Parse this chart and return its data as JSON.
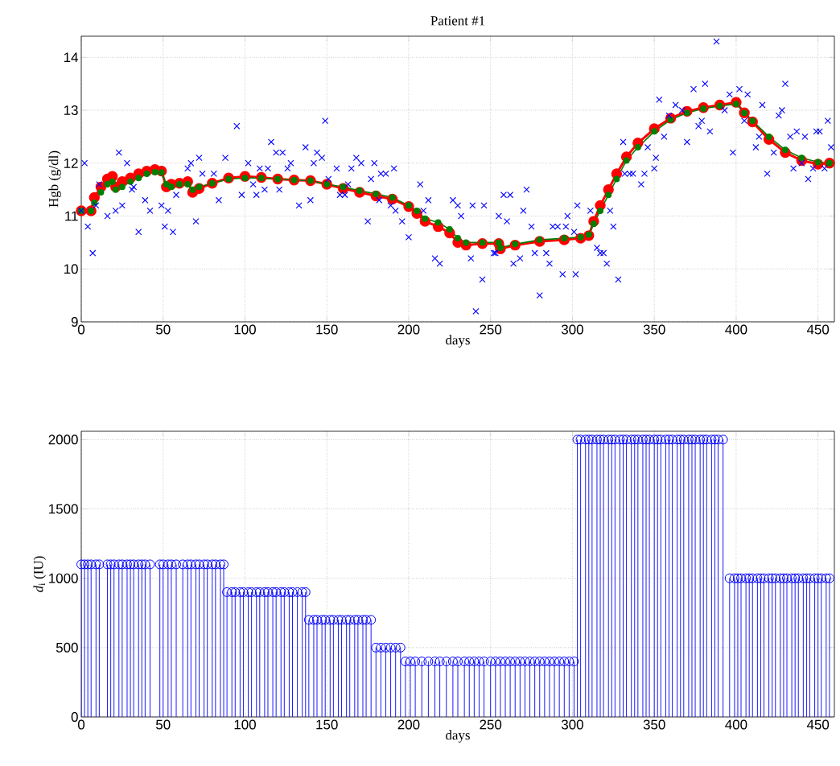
{
  "chart_data": [
    {
      "type": "scatter",
      "title": "Patient #1",
      "xlabel": "days",
      "ylabel": "Hgb (g/dl)",
      "xlim": [
        0,
        460
      ],
      "ylim": [
        9,
        14.4
      ],
      "xticks": [
        0,
        50,
        100,
        150,
        200,
        250,
        300,
        350,
        400,
        450
      ],
      "yticks": [
        9,
        10,
        11,
        12,
        13,
        14
      ],
      "grid": true,
      "series": [
        {
          "type": "scatter",
          "marker": "cross",
          "color": "#0000ff",
          "x": [
            0,
            2,
            4,
            7,
            9,
            11,
            16,
            21,
            23,
            25,
            28,
            31,
            32,
            35,
            39,
            42,
            49,
            51,
            53,
            56,
            58,
            65,
            67,
            70,
            72,
            74,
            81,
            84,
            88,
            95,
            98,
            102,
            105,
            107,
            109,
            112,
            114,
            116,
            119,
            121,
            123,
            126,
            128,
            133,
            137,
            140,
            142,
            144,
            147,
            149,
            151,
            156,
            158,
            161,
            163,
            165,
            168,
            171,
            175,
            177,
            179,
            182,
            183,
            186,
            189,
            191,
            192,
            196,
            200,
            207,
            209,
            212,
            216,
            219,
            227,
            230,
            232,
            238,
            239,
            241,
            245,
            246,
            252,
            253,
            255,
            258,
            260,
            262,
            264,
            268,
            270,
            272,
            275,
            277,
            280,
            284,
            286,
            288,
            291,
            294,
            296,
            297,
            301,
            302,
            303,
            311,
            315,
            317,
            319,
            321,
            323,
            325,
            328,
            331,
            332,
            335,
            337,
            342,
            344,
            346,
            350,
            351,
            353,
            356,
            359,
            363,
            367,
            370,
            374,
            377,
            379,
            381,
            384,
            388,
            393,
            396,
            398,
            402,
            405,
            407,
            412,
            414,
            416,
            419,
            423,
            426,
            428,
            430,
            433,
            435,
            437,
            440,
            442,
            444,
            447,
            449,
            451,
            454,
            456,
            458
          ],
          "values": [
            11.1,
            12.0,
            10.8,
            10.3,
            11.2,
            11.6,
            11.0,
            11.1,
            12.2,
            11.2,
            12.0,
            11.5,
            11.55,
            10.7,
            11.3,
            11.1,
            11.2,
            10.8,
            11.1,
            10.7,
            11.4,
            11.9,
            12.0,
            10.9,
            12.1,
            11.8,
            11.8,
            11.3,
            12.1,
            12.7,
            11.4,
            12.0,
            11.6,
            11.4,
            11.9,
            11.5,
            11.9,
            12.4,
            12.2,
            11.5,
            12.2,
            11.9,
            12.0,
            11.2,
            12.3,
            11.3,
            12.0,
            12.2,
            12.1,
            12.8,
            11.7,
            11.9,
            11.4,
            11.4,
            11.6,
            11.9,
            12.1,
            12.0,
            10.9,
            11.7,
            12.0,
            11.3,
            11.8,
            11.8,
            11.2,
            11.9,
            11.1,
            10.9,
            10.6,
            11.6,
            11.1,
            11.3,
            10.2,
            10.1,
            11.3,
            11.2,
            11.0,
            10.2,
            11.2,
            9.2,
            9.8,
            11.2,
            10.3,
            10.3,
            11.0,
            11.4,
            10.9,
            11.4,
            10.1,
            10.2,
            11.1,
            11.5,
            10.8,
            10.3,
            9.5,
            10.3,
            10.1,
            10.8,
            10.8,
            9.9,
            10.8,
            11.0,
            10.7,
            9.9,
            11.2,
            11.1,
            10.4,
            10.3,
            10.3,
            10.1,
            11.1,
            10.8,
            9.8,
            12.4,
            11.8,
            11.8,
            11.8,
            11.6,
            11.8,
            12.3,
            11.9,
            12.1,
            13.2,
            12.5,
            12.9,
            13.1,
            13.0,
            12.4,
            13.4,
            12.7,
            12.8,
            13.5,
            12.6,
            14.3,
            13.0,
            13.3,
            12.2,
            13.4,
            12.8,
            13.3,
            12.3,
            12.5,
            13.1,
            11.8,
            12.2,
            12.9,
            13.0,
            13.5,
            12.5,
            11.9,
            12.6,
            12.0,
            12.5,
            11.7,
            11.9,
            12.6,
            12.6,
            11.9,
            12.8,
            12.3
          ]
        },
        {
          "type": "line",
          "marker": "circle",
          "color": "#ff0000",
          "x": [
            0,
            6,
            8,
            12,
            16,
            19,
            21,
            25,
            30,
            35,
            40,
            45,
            49,
            52,
            55,
            60,
            65,
            68,
            72,
            80,
            90,
            100,
            110,
            120,
            130,
            140,
            150,
            160,
            170,
            180,
            190,
            200,
            205,
            210,
            218,
            225,
            230,
            235,
            245,
            255,
            256,
            265,
            280,
            295,
            305,
            310,
            313,
            317,
            322,
            327,
            333,
            340,
            350,
            360,
            370,
            380,
            390,
            400,
            405,
            410,
            420,
            430,
            440,
            450,
            457
          ],
          "values": [
            11.1,
            11.1,
            11.35,
            11.55,
            11.7,
            11.75,
            11.55,
            11.65,
            11.72,
            11.8,
            11.85,
            11.88,
            11.85,
            11.55,
            11.6,
            11.62,
            11.65,
            11.45,
            11.52,
            11.62,
            11.72,
            11.75,
            11.73,
            11.7,
            11.68,
            11.67,
            11.6,
            11.52,
            11.45,
            11.38,
            11.32,
            11.18,
            11.05,
            10.9,
            10.8,
            10.68,
            10.5,
            10.45,
            10.48,
            10.48,
            10.38,
            10.45,
            10.52,
            10.55,
            10.58,
            10.63,
            10.9,
            11.2,
            11.5,
            11.8,
            12.12,
            12.38,
            12.65,
            12.85,
            12.98,
            13.05,
            13.1,
            13.15,
            12.95,
            12.78,
            12.45,
            12.2,
            12.05,
            11.98,
            12.0
          ]
        },
        {
          "type": "line",
          "marker": "circle",
          "color": "#008000",
          "x": [
            0,
            6,
            8,
            12,
            16,
            19,
            21,
            25,
            30,
            35,
            40,
            45,
            49,
            52,
            55,
            60,
            65,
            68,
            72,
            80,
            90,
            100,
            110,
            120,
            130,
            140,
            150,
            160,
            170,
            180,
            190,
            200,
            205,
            210,
            218,
            225,
            230,
            235,
            245,
            255,
            256,
            265,
            280,
            295,
            305,
            310,
            313,
            317,
            322,
            327,
            333,
            340,
            350,
            360,
            370,
            380,
            390,
            400,
            405,
            410,
            420,
            430,
            440,
            450,
            457
          ],
          "values": [
            11.1,
            11.1,
            11.25,
            11.45,
            11.6,
            11.65,
            11.5,
            11.55,
            11.65,
            11.72,
            11.8,
            11.83,
            11.82,
            11.6,
            11.55,
            11.6,
            11.6,
            11.5,
            11.55,
            11.62,
            11.7,
            11.72,
            11.72,
            11.7,
            11.68,
            11.67,
            11.6,
            11.55,
            11.48,
            11.42,
            11.35,
            11.2,
            11.1,
            10.95,
            10.88,
            10.75,
            10.58,
            10.5,
            10.5,
            10.5,
            10.4,
            10.47,
            10.55,
            10.58,
            10.6,
            10.65,
            10.85,
            11.1,
            11.4,
            11.7,
            12.05,
            12.3,
            12.6,
            12.82,
            12.95,
            13.03,
            13.08,
            13.12,
            12.95,
            12.8,
            12.5,
            12.25,
            12.1,
            12.02,
            12.0
          ]
        }
      ]
    },
    {
      "type": "lollipop",
      "marker": "circle",
      "color": "#0000ff",
      "xlabel": "days",
      "ylabel": "*d*$_{i}$ (IU)",
      "xlim": [
        0,
        460
      ],
      "ylim": [
        0,
        2060
      ],
      "xticks": [
        0,
        50,
        100,
        150,
        200,
        250,
        300,
        350,
        400,
        450
      ],
      "yticks": [
        0,
        500,
        1000,
        1500,
        2000
      ],
      "grid": true,
      "x": [
        0,
        2,
        4,
        6,
        9,
        11,
        16,
        18,
        20,
        23,
        25,
        28,
        30,
        32,
        35,
        37,
        39,
        42,
        48,
        50,
        53,
        55,
        58,
        62,
        65,
        67,
        70,
        72,
        75,
        77,
        80,
        82,
        85,
        87,
        89,
        92,
        94,
        97,
        99,
        102,
        104,
        107,
        109,
        112,
        114,
        117,
        119,
        122,
        124,
        127,
        129,
        132,
        135,
        137,
        139,
        142,
        144,
        147,
        149,
        152,
        154,
        157,
        159,
        162,
        164,
        167,
        169,
        172,
        174,
        177,
        180,
        183,
        186,
        189,
        192,
        195,
        198,
        201,
        204,
        208,
        212,
        216,
        219,
        223,
        227,
        230,
        234,
        237,
        240,
        243,
        246,
        250,
        253,
        256,
        259,
        262,
        265,
        268,
        271,
        274,
        277,
        280,
        283,
        286,
        289,
        292,
        295,
        298,
        301,
        303,
        305,
        308,
        310,
        312,
        315,
        317,
        319,
        322,
        324,
        326,
        329,
        331,
        333,
        336,
        338,
        340,
        343,
        345,
        347,
        350,
        352,
        354,
        357,
        359,
        361,
        364,
        366,
        368,
        371,
        373,
        375,
        378,
        380,
        382,
        385,
        387,
        389,
        392,
        396,
        399,
        401,
        403,
        406,
        408,
        410,
        413,
        415,
        417,
        420,
        422,
        424,
        427,
        429,
        431,
        434,
        436,
        438,
        441,
        443,
        445,
        448,
        450,
        452,
        455,
        457
      ],
      "values": [
        1100,
        1100,
        1100,
        1100,
        1100,
        1100,
        1100,
        1100,
        1100,
        1100,
        1100,
        1100,
        1100,
        1100,
        1100,
        1100,
        1100,
        1100,
        1100,
        1100,
        1100,
        1100,
        1100,
        1100,
        1100,
        1100,
        1100,
        1100,
        1100,
        1100,
        1100,
        1100,
        1100,
        1100,
        900,
        900,
        900,
        900,
        900,
        900,
        900,
        900,
        900,
        900,
        900,
        900,
        900,
        900,
        900,
        900,
        900,
        900,
        900,
        900,
        700,
        700,
        700,
        700,
        700,
        700,
        700,
        700,
        700,
        700,
        700,
        700,
        700,
        700,
        700,
        700,
        500,
        500,
        500,
        500,
        500,
        500,
        400,
        400,
        400,
        400,
        400,
        400,
        400,
        400,
        400,
        400,
        400,
        400,
        400,
        400,
        400,
        400,
        400,
        400,
        400,
        400,
        400,
        400,
        400,
        400,
        400,
        400,
        400,
        400,
        400,
        400,
        400,
        400,
        400,
        2000,
        2000,
        2000,
        2000,
        2000,
        2000,
        2000,
        2000,
        2000,
        2000,
        2000,
        2000,
        2000,
        2000,
        2000,
        2000,
        2000,
        2000,
        2000,
        2000,
        2000,
        2000,
        2000,
        2000,
        2000,
        2000,
        2000,
        2000,
        2000,
        2000,
        2000,
        2000,
        2000,
        2000,
        2000,
        2000,
        2000,
        2000,
        2000,
        1000,
        1000,
        1000,
        1000,
        1000,
        1000,
        1000,
        1000,
        1000,
        1000,
        1000,
        1000,
        1000,
        1000,
        1000,
        1000,
        1000,
        1000,
        1000,
        1000,
        1000,
        1000,
        1000,
        1000,
        1000,
        1000,
        1000
      ]
    }
  ]
}
